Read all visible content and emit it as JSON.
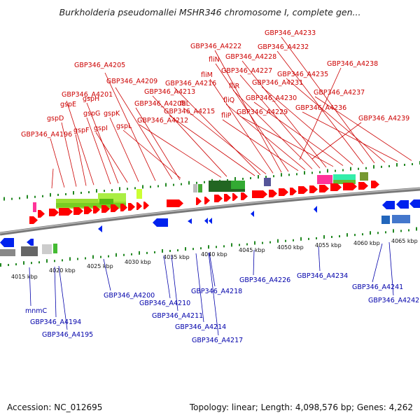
{
  "title": "Burkholderia pseudomallei MSHR346 chromosome I, complete gen...",
  "accession": "Accession: NC_012695",
  "summary": "Topology: linear; Length: 4,098,576 bp; Genes: 4,262",
  "colors": {
    "forward_gene": "#ff0000",
    "reverse_gene": "#0022ee",
    "forward_label": "#cc0000",
    "reverse_label": "#0000aa",
    "backbone": "#888888",
    "tick": "#228822"
  },
  "ticks": [
    "4015 kbp",
    "4020 kbp",
    "4025 kbp",
    "4030 kbp",
    "4035 kbp",
    "4040 kbp",
    "4045 kbp",
    "4050 kbp",
    "4055 kbp",
    "4060 kbp",
    "4065 kbp"
  ],
  "top_labels": [
    "GBP346_A4196",
    "gspD",
    "gspE",
    "gspF",
    "GBP346_A4201",
    "gspG",
    "gspH",
    "gspI",
    "gspK",
    "GBP346_A4205",
    "GBP346_A4208",
    "GBP346_A4209",
    "gspL",
    "GBP346_A4212",
    "GBP346_A4213",
    "GBP346_A4215",
    "GBP346_A4216",
    "fliL",
    "fliM",
    "GBP346_A4222",
    "fliN",
    "fliP",
    "fliQ",
    "fliR",
    "GBP346_A4227",
    "GBP346_A4228",
    "GBP346_A4229",
    "GBP346_A4230",
    "GBP346_A4231",
    "GBP346_A4232",
    "GBP346_A4233",
    "GBP346_A4235",
    "GBP346_A4236",
    "GBP346_A4237",
    "GBP346_A4238",
    "GBP346_A4239"
  ],
  "bottom_labels": [
    "mnmC",
    "GBP346_A4194",
    "GBP346_A4195",
    "GBP346_A4200",
    "GBP346_A4210",
    "GBP346_A4211",
    "GBP346_A4214",
    "GBP346_A4217",
    "GBP346_A4218",
    "GBP346_A4226",
    "GBP346_A4234",
    "GBP346_A4241",
    "GBP346_A4242"
  ]
}
